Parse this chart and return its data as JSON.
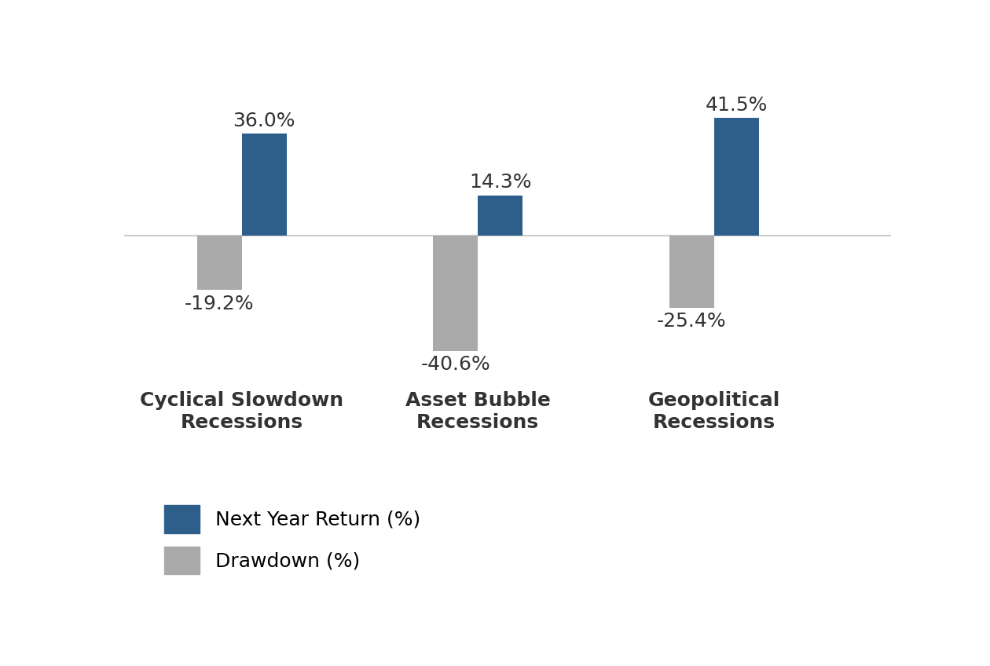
{
  "categories": [
    "Cyclical Slowdown\nRecessions",
    "Asset Bubble\nRecessions",
    "Geopolitical\nRecessions"
  ],
  "next_year_return": [
    36.0,
    14.3,
    41.5
  ],
  "drawdown": [
    -19.2,
    -40.6,
    -25.4
  ],
  "bar_color_return": "#2E5F8A",
  "bar_color_drawdown": "#AAAAAA",
  "background_color": "#FFFFFF",
  "label_return": "Next Year Return (%)",
  "label_drawdown": "Drawdown (%)",
  "bar_width": 0.38,
  "value_fontsize": 18,
  "label_fontsize": 18,
  "legend_fontsize": 18,
  "x_positions": [
    1,
    3,
    5
  ],
  "xlim": [
    0,
    6.5
  ],
  "ylim_data": [
    -50,
    55
  ],
  "zero_color": "#CCCCCC",
  "text_color": "#333333"
}
